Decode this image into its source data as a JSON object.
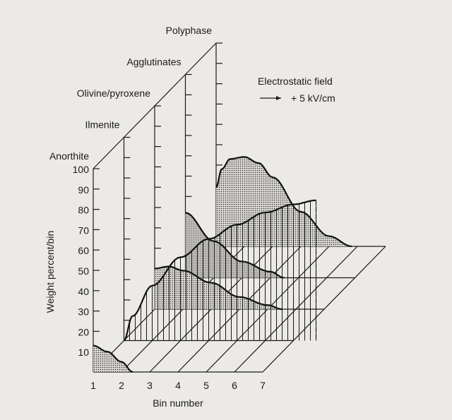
{
  "chart_data": {
    "type": "area",
    "title": "",
    "xlabel": "Bin number",
    "ylabel": "Weight percent/bin",
    "ylim": [
      0,
      100
    ],
    "xlim": [
      1,
      7
    ],
    "xticks": [
      "1",
      "2",
      "3",
      "4",
      "5",
      "6",
      "7"
    ],
    "yticks": [
      "10",
      "20",
      "30",
      "40",
      "50",
      "60",
      "70",
      "80",
      "90",
      "100"
    ],
    "annotation": {
      "line1": "Electrostatic field",
      "line2": "+ 5 kV/cm"
    },
    "series": [
      {
        "name": "Anorthite",
        "pattern": "dots",
        "x": [
          1,
          1.5,
          2,
          2.4
        ],
        "values": [
          13,
          10,
          5,
          0
        ]
      },
      {
        "name": "Ilmenite",
        "pattern": "vertical-hatch",
        "x": [
          1,
          1.3,
          2,
          3,
          4,
          5,
          6,
          7,
          7.8
        ],
        "values": [
          0,
          12,
          27,
          41,
          50,
          57,
          63,
          67,
          69
        ]
      },
      {
        "name": "Olivine/pyroxene",
        "pattern": "dots",
        "x": [
          1,
          1.5,
          2,
          3,
          4,
          5,
          5.5
        ],
        "values": [
          20,
          21,
          19,
          13,
          6,
          2,
          0
        ]
      },
      {
        "name": "Agglutinates",
        "pattern": "dots",
        "x": [
          1,
          2,
          3,
          4,
          4.5
        ],
        "values": [
          32,
          18,
          8,
          3,
          0
        ]
      },
      {
        "name": "Polyphase",
        "pattern": "dots",
        "x": [
          1,
          1.2,
          1.5,
          2,
          2.5,
          3,
          4,
          5,
          5.8
        ],
        "values": [
          29,
          38,
          43,
          44,
          41,
          34,
          17,
          5,
          0
        ]
      }
    ]
  }
}
